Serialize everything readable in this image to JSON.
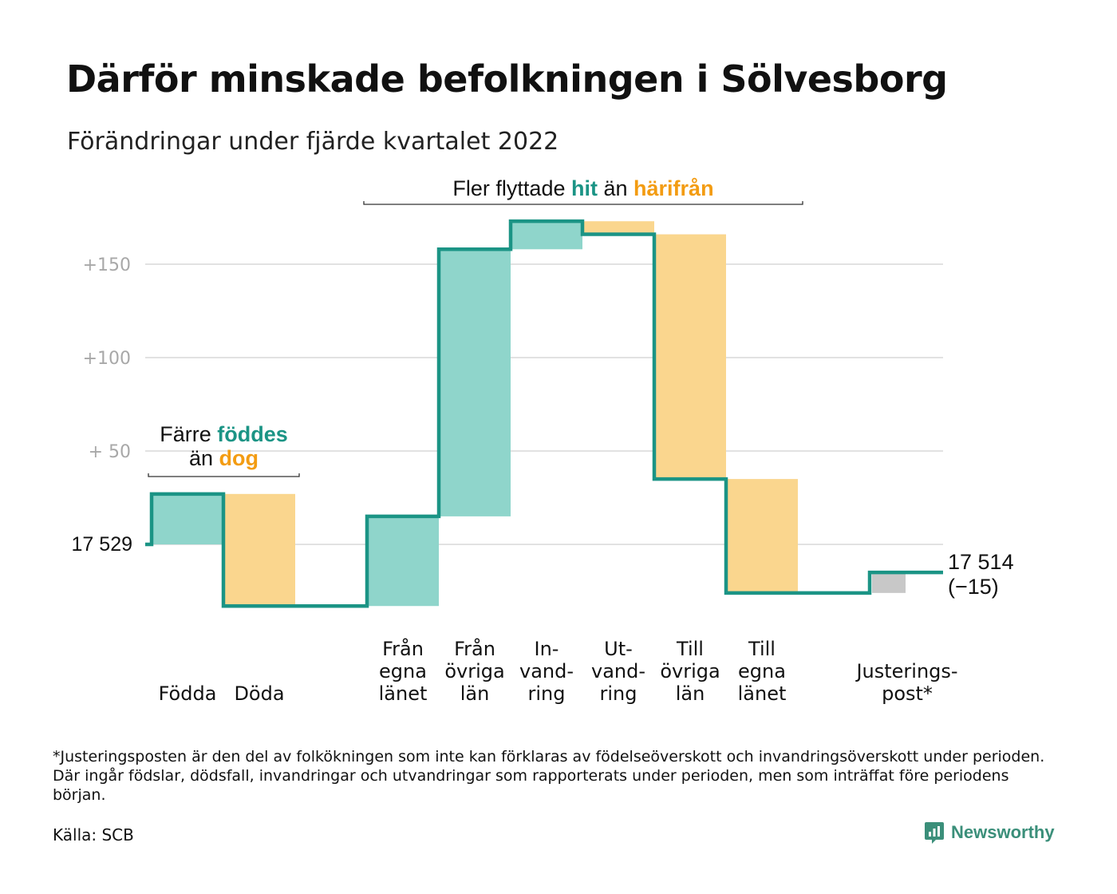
{
  "title": "Därför minskade befolkningen i Sölvesborg",
  "subtitle": "Förändringar under fjärde kvartalet 2022",
  "footnote": "*Justeringsposten är den del av folkökningen som inte kan förklaras av födelseöverskott och invandringsöverskott under perioden. Där ingår födslar, dödsfall, invandringar och utvandringar som rapporterats under perioden, men som inträffat före periodens början.",
  "source": "Källa: SCB",
  "brand": "Newsworthy",
  "colors": {
    "increase_fill": "#8fd5cb",
    "decrease_fill": "#fad68e",
    "adjustment_fill": "#c8c8c8",
    "step_line": "#1b9485",
    "teal_text": "#1b9485",
    "orange_text": "#f39c12",
    "grid": "#e2e2e2",
    "axis_text": "#a8a8a8"
  },
  "chart_data": {
    "type": "waterfall",
    "start_label": "17 529",
    "end_label": [
      "17 514",
      "(−15)"
    ],
    "start_value": 0,
    "end_value": -15,
    "y_ticks": [
      {
        "value": 50,
        "label": "+ 50"
      },
      {
        "value": 100,
        "label": "+100"
      },
      {
        "value": 150,
        "label": "+150"
      }
    ],
    "ylim": [
      -40,
      178
    ],
    "steps": [
      {
        "label": [
          "Födda"
        ],
        "delta": 27,
        "kind": "increase"
      },
      {
        "label": [
          "Döda"
        ],
        "delta": -60,
        "kind": "decrease"
      },
      {
        "label": [],
        "delta": 0,
        "kind": "gap"
      },
      {
        "label": [
          "Från",
          "egna",
          "länet"
        ],
        "delta": 48,
        "kind": "increase"
      },
      {
        "label": [
          "Från",
          "övriga",
          "län"
        ],
        "delta": 143,
        "kind": "increase"
      },
      {
        "label": [
          "In-",
          "vand-",
          "ring"
        ],
        "delta": 15,
        "kind": "increase"
      },
      {
        "label": [
          "Ut-",
          "vand-",
          "ring"
        ],
        "delta": -7,
        "kind": "decrease"
      },
      {
        "label": [
          "Till",
          "övriga",
          "län"
        ],
        "delta": -131,
        "kind": "decrease"
      },
      {
        "label": [
          "Till",
          "egna",
          "länet"
        ],
        "delta": -61,
        "kind": "decrease"
      },
      {
        "label": [],
        "delta": 0,
        "kind": "gap"
      },
      {
        "label": [
          "Justerings-",
          "post*"
        ],
        "delta": 11,
        "kind": "adjustment"
      }
    ],
    "annotations": [
      {
        "id": "births",
        "line1": [
          {
            "text": "Färre ",
            "style": "plain"
          },
          {
            "text": "föddes",
            "style": "teal"
          }
        ],
        "line2": [
          {
            "text": "än ",
            "style": "plain"
          },
          {
            "text": "dog",
            "style": "orange"
          }
        ]
      },
      {
        "id": "migration",
        "line1": [
          {
            "text": "Fler flyttade ",
            "style": "plain"
          },
          {
            "text": "hit",
            "style": "teal"
          },
          {
            "text": " än ",
            "style": "plain"
          },
          {
            "text": "härifrån",
            "style": "orange"
          }
        ]
      }
    ]
  }
}
